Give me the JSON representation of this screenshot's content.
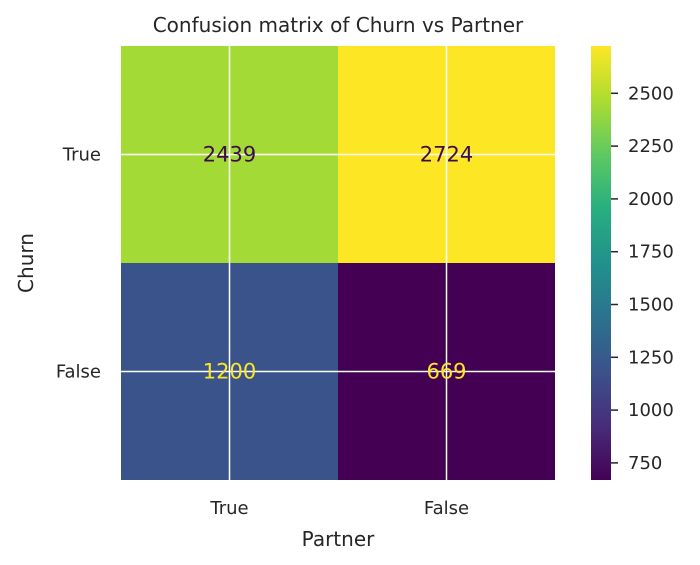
{
  "chart_data": {
    "type": "heatmap",
    "title": "Confusion matrix of Churn vs Partner",
    "xlabel": "Partner",
    "ylabel": "Churn",
    "x_categories": [
      "True",
      "False"
    ],
    "y_categories": [
      "True",
      "False"
    ],
    "values": [
      [
        2439,
        2724
      ],
      [
        1200,
        669
      ]
    ],
    "colormap": "viridis",
    "colorbar": {
      "min": 669,
      "max": 2724,
      "ticks": [
        750,
        1000,
        1250,
        1500,
        1750,
        2000,
        2250,
        2500
      ]
    },
    "grid": true,
    "colors": {
      "text_on_light": "#3b0d4c",
      "text_on_dark": "#fde725",
      "grid": "#ffffff"
    }
  }
}
